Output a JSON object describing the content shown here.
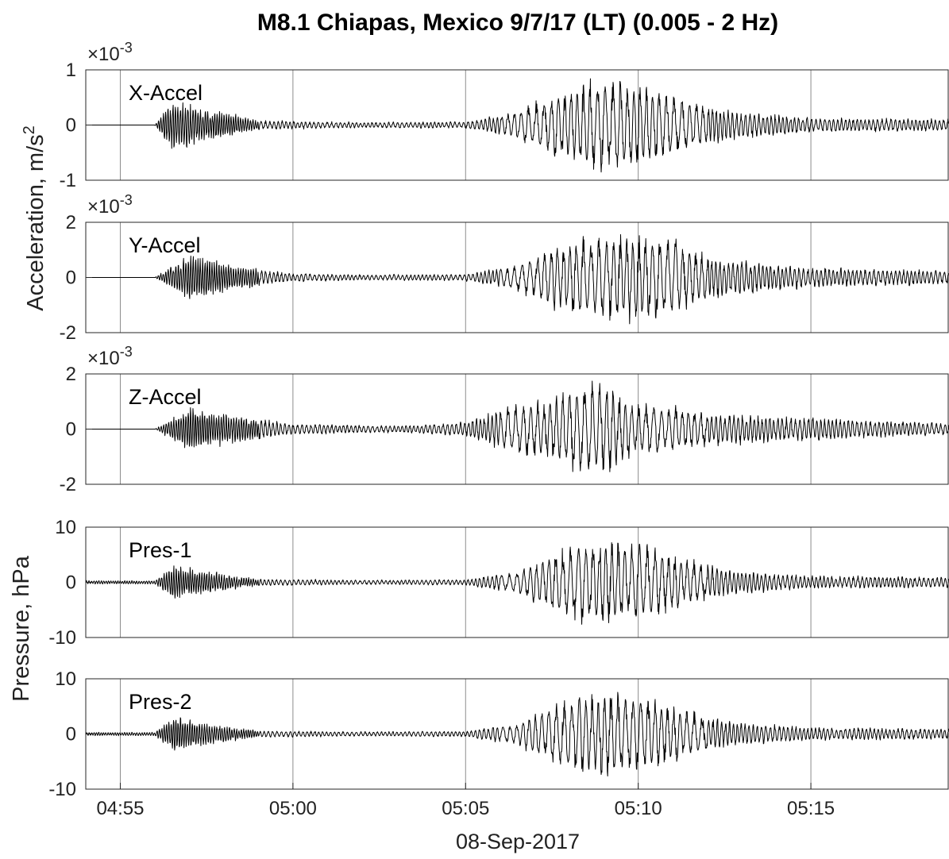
{
  "chart_data": {
    "type": "line",
    "title": "M8.1 Chiapas, Mexico 9/7/17 (LT) (0.005 - 2 Hz)",
    "xlabel": "08-Sep-2017",
    "x_range": [
      "04:54",
      "05:19"
    ],
    "x_ticks": [
      "04:55",
      "05:00",
      "05:05",
      "05:10",
      "05:15"
    ],
    "grid": "vertical",
    "group_labels": [
      {
        "id": "accel",
        "text": "Acceleration, m/s",
        "sup": "2"
      },
      {
        "id": "pres",
        "text": "Pressure, hPa"
      }
    ],
    "panels": [
      {
        "name": "X-Accel",
        "ylim": [
          -1,
          1
        ],
        "y_ticks": [
          1,
          0,
          -1
        ],
        "multiplier": {
          "base": "×10",
          "exp": "-3"
        },
        "envelope": {
          "times": [
            "04:55",
            "04:56",
            "04:56:30",
            "04:57:30",
            "04:59",
            "05:02",
            "05:05",
            "05:06:30",
            "05:07:30",
            "05:08:30",
            "05:09",
            "05:10",
            "05:11",
            "05:12",
            "05:13",
            "05:15",
            "05:19"
          ],
          "amplitudes": [
            0,
            0,
            0.45,
            0.3,
            0.08,
            0.05,
            0.06,
            0.25,
            0.55,
            0.8,
            0.85,
            0.75,
            0.55,
            0.35,
            0.25,
            0.13,
            0.1
          ]
        }
      },
      {
        "name": "Y-Accel",
        "ylim": [
          -2,
          2
        ],
        "y_ticks": [
          2,
          0,
          -2
        ],
        "multiplier": {
          "base": "×10",
          "exp": "-3"
        },
        "envelope": {
          "times": [
            "04:55",
            "04:56",
            "04:57",
            "04:58",
            "05:00",
            "05:02",
            "05:05",
            "05:06:30",
            "05:07:30",
            "05:08:30",
            "05:09",
            "05:10",
            "05:11",
            "05:12",
            "05:13",
            "05:15",
            "05:19"
          ],
          "amplitudes": [
            0,
            0,
            0.85,
            0.5,
            0.15,
            0.1,
            0.12,
            0.45,
            1.1,
            1.4,
            1.5,
            1.55,
            1.4,
            0.8,
            0.6,
            0.35,
            0.25
          ]
        }
      },
      {
        "name": "Z-Accel",
        "ylim": [
          -2,
          2
        ],
        "y_ticks": [
          2,
          0,
          -2
        ],
        "multiplier": {
          "base": "×10",
          "exp": "-3"
        },
        "envelope": {
          "times": [
            "04:55",
            "04:56",
            "04:57",
            "04:58",
            "05:00",
            "05:03",
            "05:05",
            "05:06",
            "05:07:30",
            "05:08:30",
            "05:09",
            "05:10",
            "05:11",
            "05:12",
            "05:14",
            "05:16",
            "05:19"
          ],
          "amplitudes": [
            0,
            0,
            0.8,
            0.55,
            0.2,
            0.12,
            0.25,
            0.7,
            1.2,
            1.6,
            1.7,
            0.9,
            0.8,
            0.6,
            0.45,
            0.35,
            0.2
          ]
        }
      },
      {
        "name": "Pres-1",
        "ylim": [
          -10,
          10
        ],
        "y_ticks": [
          10,
          0,
          -10
        ],
        "envelope": {
          "times": [
            "04:54",
            "04:56",
            "04:56:30",
            "04:57:30",
            "04:59",
            "05:02",
            "05:05",
            "05:06:30",
            "05:07:30",
            "05:08:30",
            "05:09",
            "05:10",
            "05:11",
            "05:12",
            "05:13",
            "05:15",
            "05:19"
          ],
          "amplitudes": [
            0.3,
            0.3,
            3.2,
            2.0,
            0.6,
            0.4,
            0.5,
            2.0,
            5.5,
            7.5,
            7.8,
            7.0,
            5.0,
            3.0,
            2.0,
            1.2,
            0.9
          ]
        }
      },
      {
        "name": "Pres-2",
        "ylim": [
          -10,
          10
        ],
        "y_ticks": [
          10,
          0,
          -10
        ],
        "envelope": {
          "times": [
            "04:54",
            "04:56",
            "04:56:30",
            "04:57:30",
            "04:59",
            "05:02",
            "05:05",
            "05:06:30",
            "05:07:30",
            "05:08:30",
            "05:09",
            "05:10",
            "05:11",
            "05:12",
            "05:13",
            "05:15",
            "05:19"
          ],
          "amplitudes": [
            0.3,
            0.3,
            3.2,
            2.0,
            0.6,
            0.4,
            0.5,
            2.0,
            5.5,
            7.5,
            7.8,
            7.0,
            5.0,
            3.0,
            2.0,
            1.2,
            0.9
          ]
        }
      }
    ]
  }
}
